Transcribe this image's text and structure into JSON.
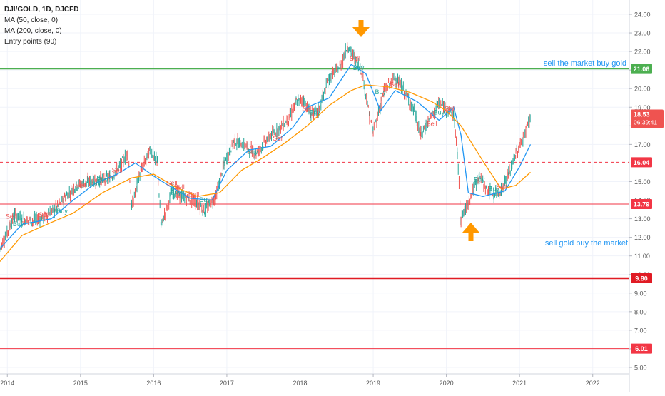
{
  "legend": {
    "symbol_line": "DJI/GOLD, 1D, DJCFD",
    "indicators": [
      "MA (50, close, 0)",
      "MA (200, close, 0)",
      "Entry points (90)"
    ]
  },
  "annotations": {
    "top_text": "sell the market buy gold",
    "bottom_text": "sell gold buy the market",
    "arrow_top": "down-arrow-icon",
    "arrow_bottom": "up-arrow-icon"
  },
  "colors": {
    "price_up": "#26a69a",
    "price_down": "#ef5350",
    "ma50": "#2196f3",
    "ma200": "#ff9800",
    "green_level": "#4caf50",
    "red_level": "#f23645",
    "arrow": "#ff9800",
    "annotation_text": "#2196f3"
  },
  "chart_data": {
    "type": "line",
    "title": "DJI/GOLD, 1D, DJCFD",
    "ylim": [
      4.6,
      25
    ],
    "yticks": [
      5.0,
      6.0,
      7.0,
      8.0,
      9.0,
      10.0,
      11.0,
      12.0,
      13.0,
      14.0,
      15.0,
      16.0,
      17.0,
      18.0,
      19.0,
      20.0,
      21.0,
      22.0,
      23.0,
      24.0
    ],
    "xlim": [
      2013.9,
      2022.5
    ],
    "xticks": [
      "2014",
      "2015",
      "2016",
      "2017",
      "2018",
      "2019",
      "2020",
      "2021",
      "2022"
    ],
    "grid": true,
    "series": [
      {
        "name": "Price",
        "x": [
          2013.9,
          2014.0,
          2014.1,
          2014.2,
          2014.35,
          2014.5,
          2014.65,
          2014.8,
          2014.95,
          2015.1,
          2015.25,
          2015.4,
          2015.55,
          2015.65,
          2015.7,
          2015.8,
          2015.95,
          2016.05,
          2016.1,
          2016.25,
          2016.4,
          2016.55,
          2016.7,
          2016.85,
          2016.95,
          2017.1,
          2017.25,
          2017.4,
          2017.55,
          2017.7,
          2017.85,
          2017.95,
          2018.05,
          2018.15,
          2018.25,
          2018.4,
          2018.55,
          2018.65,
          2018.75,
          2018.85,
          2018.95,
          2019.0,
          2019.15,
          2019.3,
          2019.4,
          2019.55,
          2019.65,
          2019.75,
          2019.9,
          2020.0,
          2020.1,
          2020.15,
          2020.2,
          2020.25,
          2020.35,
          2020.45,
          2020.55,
          2020.65,
          2020.75,
          2020.85,
          2020.95,
          2021.05,
          2021.15
        ],
        "values": [
          11.4,
          12.3,
          13.2,
          13.0,
          12.9,
          13.1,
          13.5,
          14.2,
          14.8,
          15.0,
          15.1,
          15.2,
          15.9,
          16.6,
          13.6,
          15.3,
          16.7,
          16.0,
          12.6,
          14.5,
          14.2,
          14.0,
          13.4,
          14.2,
          15.8,
          17.2,
          16.9,
          16.5,
          17.3,
          17.8,
          18.4,
          19.3,
          19.4,
          18.6,
          18.8,
          20.6,
          21.2,
          22.3,
          21.6,
          20.9,
          18.5,
          17.6,
          19.9,
          20.6,
          20.0,
          18.9,
          17.5,
          18.2,
          19.2,
          18.9,
          18.6,
          16.5,
          13.0,
          13.4,
          14.4,
          15.3,
          14.6,
          14.3,
          14.5,
          15.4,
          16.5,
          17.3,
          18.53
        ]
      },
      {
        "name": "MA (50, close, 0)",
        "x": [
          2013.9,
          2014.2,
          2014.6,
          2014.9,
          2015.2,
          2015.5,
          2015.75,
          2016.0,
          2016.2,
          2016.5,
          2016.8,
          2017.0,
          2017.3,
          2017.6,
          2017.9,
          2018.1,
          2018.4,
          2018.7,
          2018.9,
          2019.1,
          2019.3,
          2019.6,
          2019.9,
          2020.1,
          2020.2,
          2020.3,
          2020.5,
          2020.8,
          2021.0,
          2021.15
        ],
        "values": [
          11.4,
          12.7,
          13.0,
          14.0,
          14.9,
          15.4,
          16.0,
          15.3,
          14.8,
          14.1,
          14.0,
          15.6,
          16.7,
          16.9,
          17.9,
          19.0,
          19.5,
          21.3,
          20.8,
          18.8,
          19.9,
          19.3,
          18.3,
          19.0,
          17.5,
          14.4,
          14.2,
          14.5,
          15.8,
          17.0
        ]
      },
      {
        "name": "MA (200, close, 0)",
        "x": [
          2013.9,
          2014.2,
          2014.6,
          2014.9,
          2015.3,
          2015.7,
          2016.0,
          2016.3,
          2016.6,
          2016.9,
          2017.2,
          2017.5,
          2017.8,
          2018.1,
          2018.4,
          2018.7,
          2018.9,
          2019.2,
          2019.5,
          2019.8,
          2020.0,
          2020.2,
          2020.5,
          2020.75,
          2020.95,
          2021.15
        ],
        "values": [
          10.7,
          12.1,
          12.8,
          13.3,
          14.4,
          15.2,
          15.4,
          14.7,
          14.2,
          14.4,
          15.6,
          16.3,
          17.1,
          18.0,
          19.1,
          19.9,
          20.2,
          20.1,
          19.8,
          19.3,
          18.8,
          18.0,
          16.1,
          14.6,
          14.8,
          15.5
        ]
      }
    ],
    "horizontal_levels": [
      {
        "value": 21.06,
        "label": "21.06",
        "style": "solid-green"
      },
      {
        "value": 16.04,
        "label": "16.04",
        "style": "dashed-red"
      },
      {
        "value": 13.79,
        "label": "13.79",
        "style": "solid-red"
      },
      {
        "value": 9.8,
        "label": "9.80",
        "style": "thick-red"
      },
      {
        "value": 6.01,
        "label": "6.01",
        "style": "solid-red"
      }
    ],
    "current_price": {
      "value": 18.53,
      "label": "18.53",
      "countdown": "06:39:41"
    },
    "signals": [
      {
        "x": 2014.05,
        "y": 13.0,
        "label": "Sell"
      },
      {
        "x": 2014.15,
        "y": 12.6,
        "label": "Buy"
      },
      {
        "x": 2014.5,
        "y": 13.1,
        "label": "Sell"
      },
      {
        "x": 2014.75,
        "y": 13.3,
        "label": "Buy"
      },
      {
        "x": 2015.0,
        "y": 14.7,
        "label": "Sell"
      },
      {
        "x": 2015.2,
        "y": 14.8,
        "label": "Buy"
      },
      {
        "x": 2015.5,
        "y": 15.5,
        "label": "Sell"
      },
      {
        "x": 2015.3,
        "y": 15.0,
        "label": "Buy"
      },
      {
        "x": 2016.25,
        "y": 14.8,
        "label": "Sell"
      },
      {
        "x": 2016.35,
        "y": 14.6,
        "label": "Sell"
      },
      {
        "x": 2016.3,
        "y": 14.3,
        "label": "Buy"
      },
      {
        "x": 2016.55,
        "y": 14.2,
        "label": "Sell"
      },
      {
        "x": 2016.7,
        "y": 13.9,
        "label": "Buy"
      },
      {
        "x": 2017.35,
        "y": 16.5,
        "label": "Buy"
      },
      {
        "x": 2017.7,
        "y": 17.2,
        "label": "Sell"
      },
      {
        "x": 2018.1,
        "y": 18.8,
        "label": "Sell"
      },
      {
        "x": 2018.2,
        "y": 18.6,
        "label": "Buy"
      },
      {
        "x": 2018.75,
        "y": 21.5,
        "label": "Sell"
      },
      {
        "x": 2018.8,
        "y": 21.0,
        "label": "Buy"
      },
      {
        "x": 2019.1,
        "y": 19.7,
        "label": "Buy"
      },
      {
        "x": 2019.3,
        "y": 20.1,
        "label": "Sell"
      },
      {
        "x": 2019.8,
        "y": 18.0,
        "label": "Sell"
      },
      {
        "x": 2019.9,
        "y": 18.6,
        "label": "Buy"
      },
      {
        "x": 2020.05,
        "y": 18.8,
        "label": "Sell"
      },
      {
        "x": 2020.45,
        "y": 15.0,
        "label": "Buy"
      },
      {
        "x": 2020.75,
        "y": 14.6,
        "label": "Sell"
      },
      {
        "x": 2020.65,
        "y": 14.5,
        "label": "Buy"
      }
    ]
  }
}
